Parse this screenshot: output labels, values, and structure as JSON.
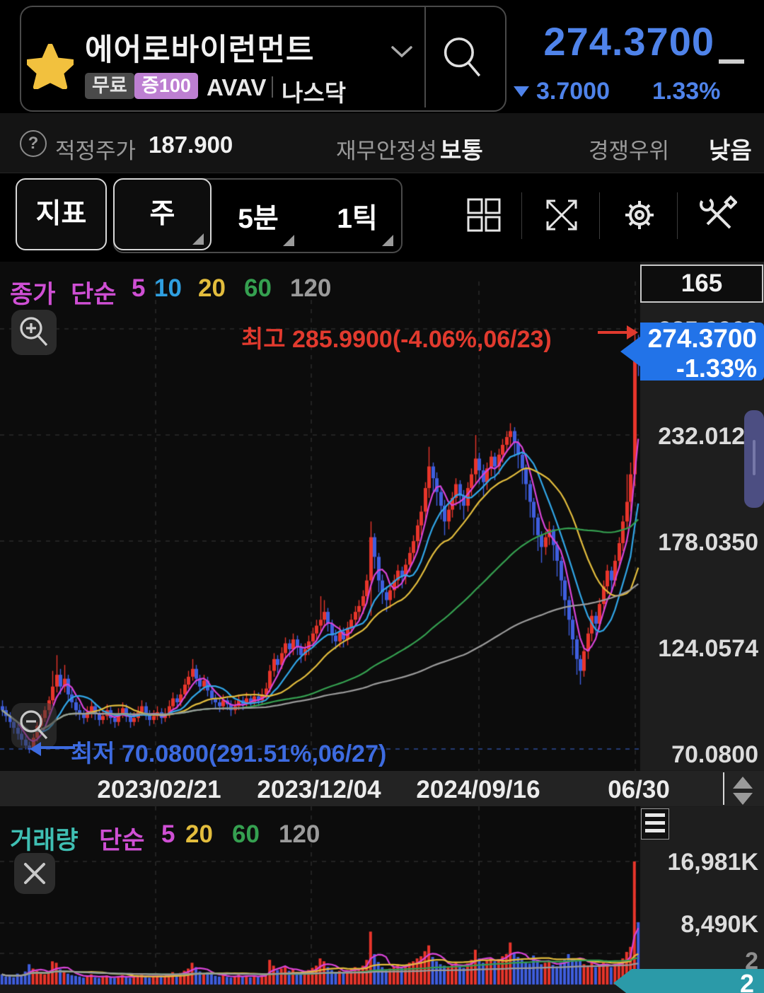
{
  "header": {
    "name": "에어로바이런먼트",
    "badge_free": "무료",
    "badge_leverage": "증100",
    "ticker": "AVAV",
    "exchange": "나스닥",
    "price": "274.3700",
    "change": "3.7000",
    "change_pct": "1.33%"
  },
  "infobar": {
    "help_icon": "?",
    "target_label": "적정주가",
    "target_value": "187.900",
    "stability_label": "재무안정성",
    "stability_value": "보통",
    "advantage_label": "경쟁우위",
    "advantage_value": "낮음"
  },
  "toolbar": {
    "indicator": "지표",
    "period_week": "주",
    "period_5min": "5분",
    "period_tick": "1틱"
  },
  "price_pane": {
    "legend": {
      "title": "종가",
      "method": "단순",
      "p5": "5",
      "p10": "10",
      "p20": "20",
      "p60": "60",
      "p120": "120"
    },
    "count_box": "165",
    "high_annotation": "최고 285.9900(-4.06%,06/23)",
    "low_annotation": "최저 70.0800(291.51%,06/27)",
    "axis": [
      "285.9900",
      "232.0125",
      "178.0350",
      "124.0574",
      "70.0800"
    ],
    "price_tag": {
      "price": "274.3700",
      "pct": "-1.33%"
    }
  },
  "xaxis": {
    "labels": [
      "2023/02/21",
      "2023/12/04",
      "2024/09/16",
      "06/30"
    ]
  },
  "volume_pane": {
    "legend": {
      "title": "거래량",
      "method": "단순",
      "p5": "5",
      "p20": "20",
      "p60": "60",
      "p120": "120"
    },
    "axis": [
      "16,981K",
      "8,490K"
    ],
    "axis_partial": "2",
    "tag_label": "2"
  },
  "chart_data": {
    "type": "candlestick",
    "interval": "weekly",
    "visible_bars": 165,
    "x_tick_labels": [
      "2023/02/21",
      "2023/12/04",
      "2024/09/16",
      "06/30"
    ],
    "price_axis_ticks": [
      285.99,
      232.0125,
      178.035,
      124.0574,
      70.08
    ],
    "volume_axis_ticks_k": [
      16981,
      8490
    ],
    "high_point": {
      "label": "최고",
      "price": 285.99,
      "pct": "-4.06%",
      "date": "06/23",
      "color": "#e13a2e"
    },
    "low_point": {
      "label": "최저",
      "price": 70.08,
      "pct": "291.51%",
      "date": "06/27",
      "color": "#3d6be0"
    },
    "last": {
      "price": 274.37,
      "change": -3.7,
      "pct": "-1.33%"
    },
    "up_color": "#e8352b",
    "down_color": "#3f5ede",
    "ma_overlays": [
      {
        "period": 5,
        "color": "#d844d8"
      },
      {
        "period": 10,
        "color": "#31a6e8"
      },
      {
        "period": 20,
        "color": "#e3bd3d"
      },
      {
        "period": 60,
        "color": "#35a050"
      },
      {
        "period": 120,
        "color": "#9b9b9b"
      }
    ],
    "vol_ma_overlays": [
      {
        "period": 5,
        "color": "#d844d8"
      },
      {
        "period": 20,
        "color": "#e3bd3d"
      },
      {
        "period": 60,
        "color": "#35a050"
      },
      {
        "period": 120,
        "color": "#9b9b9b"
      }
    ],
    "candles": [
      [
        94,
        97,
        89,
        92
      ],
      [
        92,
        94,
        86,
        89
      ],
      [
        89,
        91,
        83,
        86
      ],
      [
        86,
        88,
        80,
        83
      ],
      [
        83,
        85,
        77,
        80
      ],
      [
        80,
        82,
        74,
        77
      ],
      [
        77,
        79,
        72,
        74
      ],
      [
        74,
        76,
        70.08,
        72
      ],
      [
        72,
        80,
        71,
        78
      ],
      [
        78,
        86,
        76,
        84
      ],
      [
        84,
        90,
        82,
        88
      ],
      [
        88,
        94,
        86,
        92
      ],
      [
        92,
        99,
        90,
        97
      ],
      [
        97,
        112,
        95,
        104
      ],
      [
        104,
        120,
        101,
        110
      ],
      [
        110,
        113,
        100,
        104
      ],
      [
        104,
        115,
        101,
        108
      ],
      [
        108,
        110,
        97,
        100
      ],
      [
        100,
        103,
        93,
        96
      ],
      [
        96,
        98,
        89,
        92
      ],
      [
        92,
        95,
        87,
        90
      ],
      [
        90,
        92,
        85,
        88
      ],
      [
        88,
        94,
        86,
        91
      ],
      [
        91,
        97,
        88,
        94
      ],
      [
        94,
        96,
        87,
        90
      ],
      [
        90,
        92,
        84,
        87
      ],
      [
        87,
        92,
        85,
        89
      ],
      [
        89,
        95,
        87,
        92
      ],
      [
        92,
        94,
        85,
        88
      ],
      [
        88,
        90,
        83,
        86
      ],
      [
        86,
        93,
        84,
        90
      ],
      [
        90,
        96,
        88,
        93
      ],
      [
        93,
        95,
        86,
        89
      ],
      [
        89,
        91,
        83,
        86
      ],
      [
        86,
        91,
        84,
        88
      ],
      [
        88,
        94,
        86,
        91
      ],
      [
        91,
        97,
        89,
        94
      ],
      [
        94,
        96,
        87,
        90
      ],
      [
        90,
        92,
        84,
        87
      ],
      [
        87,
        92,
        85,
        89
      ],
      [
        89,
        94,
        87,
        91
      ],
      [
        91,
        93,
        85,
        88
      ],
      [
        88,
        93,
        86,
        90
      ],
      [
        90,
        97,
        88,
        94
      ],
      [
        94,
        101,
        92,
        98
      ],
      [
        98,
        100,
        93,
        96
      ],
      [
        96,
        103,
        94,
        100
      ],
      [
        100,
        108,
        98,
        105
      ],
      [
        105,
        112,
        103,
        109
      ],
      [
        109,
        118,
        107,
        113
      ],
      [
        113,
        115,
        105,
        108
      ],
      [
        108,
        110,
        101,
        104
      ],
      [
        104,
        110,
        102,
        107
      ],
      [
        107,
        109,
        99,
        102
      ],
      [
        102,
        104,
        95,
        98
      ],
      [
        98,
        100,
        93,
        96
      ],
      [
        96,
        98,
        91,
        94
      ],
      [
        94,
        100,
        92,
        97
      ],
      [
        97,
        99,
        92,
        95
      ],
      [
        95,
        97,
        89,
        92
      ],
      [
        92,
        97,
        90,
        94
      ],
      [
        94,
        100,
        92,
        97
      ],
      [
        97,
        99,
        92,
        95
      ],
      [
        95,
        101,
        93,
        98
      ],
      [
        98,
        100,
        93,
        96
      ],
      [
        96,
        102,
        94,
        99
      ],
      [
        99,
        101,
        94,
        97
      ],
      [
        97,
        103,
        95,
        100
      ],
      [
        100,
        106,
        98,
        103
      ],
      [
        103,
        115,
        101,
        112
      ],
      [
        112,
        121,
        109,
        118
      ],
      [
        118,
        120,
        111,
        115
      ],
      [
        115,
        124,
        113,
        121
      ],
      [
        121,
        129,
        118,
        126
      ],
      [
        126,
        128,
        119,
        123
      ],
      [
        123,
        131,
        120,
        128
      ],
      [
        128,
        130,
        120,
        124
      ],
      [
        124,
        126,
        116,
        120
      ],
      [
        120,
        126,
        117,
        123
      ],
      [
        123,
        130,
        120,
        127
      ],
      [
        127,
        134,
        124,
        131
      ],
      [
        131,
        138,
        128,
        135
      ],
      [
        135,
        150,
        132,
        138
      ],
      [
        138,
        148,
        134,
        142
      ],
      [
        142,
        144,
        132,
        136
      ],
      [
        136,
        138,
        126,
        130
      ],
      [
        130,
        133,
        123,
        127
      ],
      [
        127,
        135,
        124,
        132
      ],
      [
        132,
        134,
        124,
        128
      ],
      [
        128,
        137,
        125,
        134
      ],
      [
        134,
        141,
        131,
        138
      ],
      [
        138,
        145,
        135,
        142
      ],
      [
        142,
        148,
        138,
        145
      ],
      [
        145,
        153,
        141,
        150
      ],
      [
        150,
        161,
        146,
        158
      ],
      [
        158,
        188,
        140,
        180
      ],
      [
        180,
        182,
        164,
        170
      ],
      [
        170,
        172,
        152,
        158
      ],
      [
        158,
        161,
        146,
        152
      ],
      [
        152,
        155,
        142,
        148
      ],
      [
        148,
        156,
        144,
        153
      ],
      [
        153,
        161,
        149,
        158
      ],
      [
        158,
        166,
        154,
        163
      ],
      [
        163,
        165,
        154,
        160
      ],
      [
        160,
        169,
        156,
        166
      ],
      [
        166,
        175,
        162,
        172
      ],
      [
        172,
        181,
        168,
        178
      ],
      [
        178,
        189,
        174,
        186
      ],
      [
        186,
        196,
        181,
        193
      ],
      [
        193,
        208,
        189,
        205
      ],
      [
        205,
        226,
        200,
        216
      ],
      [
        216,
        218,
        203,
        210
      ],
      [
        210,
        213,
        196,
        203
      ],
      [
        203,
        206,
        189,
        196
      ],
      [
        196,
        199,
        181,
        188
      ],
      [
        188,
        197,
        184,
        194
      ],
      [
        194,
        203,
        190,
        200
      ],
      [
        200,
        210,
        196,
        207
      ],
      [
        207,
        209,
        194,
        201
      ],
      [
        201,
        204,
        189,
        196
      ],
      [
        196,
        208,
        193,
        205
      ],
      [
        205,
        215,
        201,
        212
      ],
      [
        212,
        232,
        207,
        220
      ],
      [
        220,
        223,
        207,
        214
      ],
      [
        214,
        217,
        201,
        208
      ],
      [
        208,
        218,
        204,
        215
      ],
      [
        215,
        224,
        211,
        221
      ],
      [
        221,
        223,
        209,
        216
      ],
      [
        216,
        225,
        212,
        222
      ],
      [
        222,
        230,
        218,
        227
      ],
      [
        227,
        234,
        223,
        231
      ],
      [
        231,
        238,
        226,
        234
      ],
      [
        234,
        236,
        221,
        228
      ],
      [
        228,
        230,
        215,
        222
      ],
      [
        222,
        224,
        207,
        215
      ],
      [
        215,
        217,
        199,
        207
      ],
      [
        207,
        209,
        190,
        198
      ],
      [
        198,
        200,
        181,
        190
      ],
      [
        190,
        192,
        173,
        181
      ],
      [
        181,
        183,
        167,
        175
      ],
      [
        175,
        183,
        171,
        180
      ],
      [
        180,
        188,
        176,
        184
      ],
      [
        184,
        186,
        168,
        176
      ],
      [
        176,
        178,
        160,
        168
      ],
      [
        168,
        170,
        150,
        158
      ],
      [
        158,
        160,
        140,
        148
      ],
      [
        148,
        150,
        130,
        138
      ],
      [
        138,
        140,
        120,
        128
      ],
      [
        128,
        130,
        110,
        118
      ],
      [
        118,
        120,
        105,
        112
      ],
      [
        112,
        125,
        109,
        122
      ],
      [
        122,
        134,
        118,
        131
      ],
      [
        131,
        143,
        127,
        140
      ],
      [
        140,
        142,
        130,
        136
      ],
      [
        136,
        149,
        133,
        146
      ],
      [
        146,
        158,
        142,
        155
      ],
      [
        155,
        166,
        151,
        163
      ],
      [
        163,
        165,
        152,
        158
      ],
      [
        158,
        171,
        155,
        168
      ],
      [
        168,
        180,
        164,
        177
      ],
      [
        177,
        191,
        173,
        188
      ],
      [
        188,
        212,
        184,
        198
      ],
      [
        198,
        218,
        193,
        212
      ],
      [
        212,
        286,
        206,
        278
      ],
      [
        278,
        283,
        262,
        274.37
      ]
    ],
    "volumes_k": [
      1400,
      1100,
      1300,
      1000,
      1500,
      1200,
      1800,
      2800,
      2200,
      1900,
      1600,
      1400,
      1700,
      3200,
      3000,
      2100,
      1800,
      1500,
      1300,
      1200,
      1100,
      950,
      1200,
      1400,
      1000,
      900,
      1050,
      1250,
      980,
      900,
      1150,
      1300,
      1000,
      920,
      1100,
      1280,
      1350,
      1050,
      950,
      1100,
      1200,
      1300,
      1150,
      1400,
      1700,
      1300,
      1600,
      1900,
      2200,
      3000,
      2400,
      1800,
      1500,
      1700,
      1400,
      1200,
      1100,
      1300,
      1050,
      950,
      1150,
      1350,
      1100,
      1250,
      1000,
      1200,
      1050,
      1300,
      1500,
      3400,
      2600,
      2000,
      2200,
      2500,
      1900,
      2100,
      1700,
      1500,
      1800,
      2000,
      2300,
      2600,
      3600,
      3200,
      2400,
      2000,
      1700,
      1900,
      1600,
      2000,
      2200,
      2400,
      2100,
      2600,
      3400,
      7300,
      4200,
      3100,
      2400,
      2000,
      2200,
      2500,
      2800,
      2300,
      2600,
      3000,
      3200,
      3600,
      3900,
      4600,
      5400,
      3800,
      3200,
      2800,
      2600,
      2400,
      2700,
      3100,
      2600,
      2300,
      2900,
      3400,
      4800,
      3600,
      3000,
      3300,
      3700,
      3200,
      3500,
      3900,
      4200,
      5800,
      4400,
      3800,
      3400,
      3100,
      2900,
      4000,
      3300,
      2800,
      3000,
      3200,
      2700,
      2500,
      3000,
      3400,
      4200,
      3600,
      3300,
      3600,
      2800,
      2600,
      3000,
      2400,
      2700,
      3000,
      2700,
      2400,
      2800,
      3100,
      3600,
      4500,
      5200,
      16981,
      8600
    ]
  }
}
